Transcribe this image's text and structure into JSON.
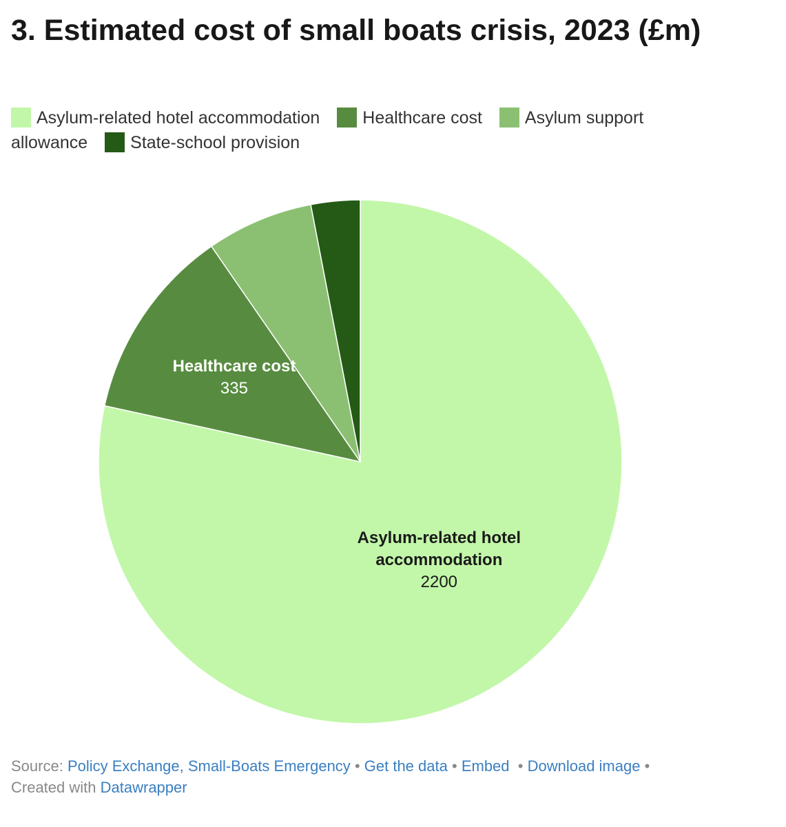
{
  "title": "3. Estimated cost of small boats crisis, 2023 (£m)",
  "chart_data": {
    "type": "pie",
    "slices": [
      {
        "label": "Asylum-related hotel accommodation",
        "value": 2200,
        "color": "#c2f7a9",
        "show_label": true,
        "label_color": "#1a1a1a"
      },
      {
        "label": "Healthcare cost",
        "value": 335,
        "color": "#578c40",
        "show_label": true,
        "label_color": "#ffffff"
      },
      {
        "label": "Asylum support allowance",
        "value": 185,
        "color": "#8bc072",
        "show_label": false
      },
      {
        "label": "State-school provision",
        "value": 85,
        "color": "#245a16",
        "show_label": false
      }
    ],
    "legend_position": "top"
  },
  "footer": {
    "source_prefix": "Source:",
    "source_link": "Policy Exchange, Small-Boats Emergency",
    "get_data": "Get the data",
    "embed": "Embed",
    "download": "Download image",
    "created_with": "Created with",
    "datawrapper": "Datawrapper",
    "separator": "•"
  }
}
